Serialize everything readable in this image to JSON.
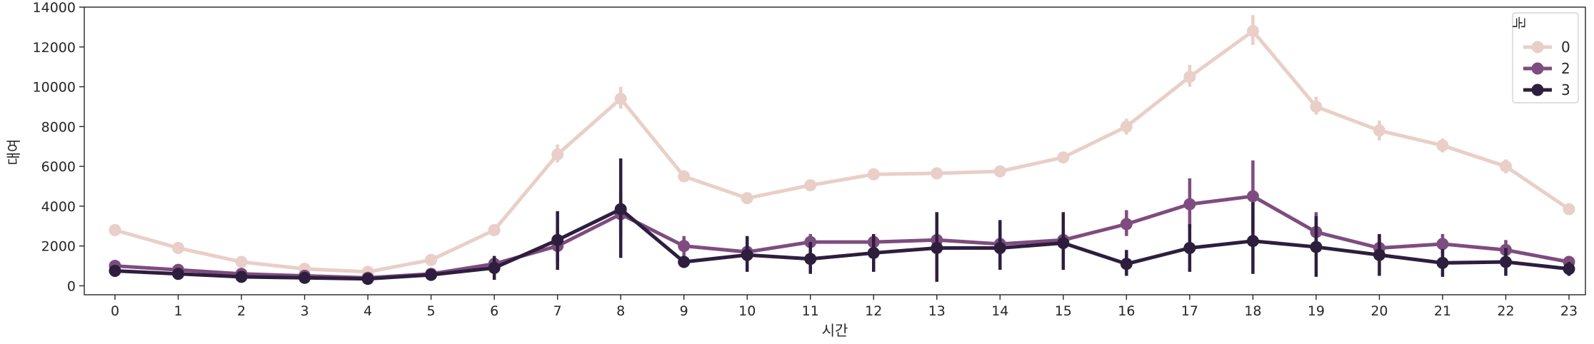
{
  "chart_data": {
    "type": "line",
    "xlabel": "시간",
    "ylabel": "대여",
    "categories": [
      "0",
      "1",
      "2",
      "3",
      "4",
      "5",
      "6",
      "7",
      "8",
      "9",
      "10",
      "11",
      "12",
      "13",
      "14",
      "15",
      "16",
      "17",
      "18",
      "19",
      "20",
      "21",
      "22",
      "23"
    ],
    "yticks": [
      0,
      2000,
      4000,
      6000,
      8000,
      10000,
      12000,
      14000
    ],
    "ylim": [
      -450,
      14000
    ],
    "legend": {
      "title": "눈",
      "placement": "top-right"
    },
    "series": [
      {
        "name": "0",
        "color": "#e9cfc7",
        "values": [
          2800,
          1900,
          1200,
          850,
          700,
          1300,
          2800,
          6600,
          9400,
          5500,
          4400,
          5050,
          5600,
          5650,
          5750,
          6450,
          8000,
          10500,
          12800,
          9000,
          7800,
          7050,
          6000,
          3850
        ],
        "error": [
          [
            2650,
            2950
          ],
          [
            1800,
            2000
          ],
          [
            1100,
            1300
          ],
          [
            750,
            950
          ],
          [
            600,
            800
          ],
          [
            1200,
            1400
          ],
          [
            2600,
            3000
          ],
          [
            6200,
            7100
          ],
          [
            8900,
            10000
          ],
          [
            5300,
            5700
          ],
          [
            4200,
            4650
          ],
          [
            4850,
            5250
          ],
          [
            5400,
            5800
          ],
          [
            5450,
            5850
          ],
          [
            5550,
            5950
          ],
          [
            6200,
            6700
          ],
          [
            7600,
            8400
          ],
          [
            10000,
            11100
          ],
          [
            12100,
            13600
          ],
          [
            8600,
            9500
          ],
          [
            7300,
            8300
          ],
          [
            6700,
            7400
          ],
          [
            5650,
            6350
          ],
          [
            3650,
            4050
          ]
        ]
      },
      {
        "name": "2",
        "color": "#7e4c7f",
        "values": [
          1000,
          800,
          600,
          500,
          400,
          600,
          1100,
          2000,
          3600,
          2000,
          1700,
          2200,
          2200,
          2300,
          2100,
          2300,
          3100,
          4100,
          4500,
          2700,
          1900,
          2100,
          1800,
          1200
        ],
        "error": [
          [
            850,
            1150
          ],
          [
            650,
            950
          ],
          [
            450,
            750
          ],
          [
            350,
            650
          ],
          [
            250,
            550
          ],
          [
            450,
            750
          ],
          [
            800,
            1400
          ],
          [
            1200,
            2900
          ],
          [
            2500,
            4700
          ],
          [
            1500,
            2500
          ],
          [
            1200,
            2200
          ],
          [
            1800,
            2600
          ],
          [
            1800,
            2600
          ],
          [
            1800,
            2800
          ],
          [
            1700,
            2600
          ],
          [
            1800,
            2800
          ],
          [
            2500,
            3800
          ],
          [
            2900,
            5400
          ],
          [
            2700,
            6300
          ],
          [
            1700,
            3700
          ],
          [
            1300,
            2600
          ],
          [
            1600,
            2600
          ],
          [
            1300,
            2300
          ],
          [
            900,
            1500
          ]
        ]
      },
      {
        "name": "3",
        "color": "#2d1e3e",
        "values": [
          750,
          600,
          450,
          400,
          350,
          550,
          900,
          2300,
          3850,
          1200,
          1550,
          1350,
          1650,
          1900,
          1900,
          2150,
          1100,
          1900,
          2250,
          1950,
          1550,
          1150,
          1200,
          850
        ],
        "error": [
          [
            550,
            950
          ],
          [
            450,
            750
          ],
          [
            300,
            600
          ],
          [
            250,
            550
          ],
          [
            200,
            500
          ],
          [
            400,
            700
          ],
          [
            300,
            1500
          ],
          [
            800,
            3750
          ],
          [
            1400,
            6400
          ],
          [
            900,
            1500
          ],
          [
            700,
            2500
          ],
          [
            600,
            2200
          ],
          [
            700,
            2600
          ],
          [
            200,
            3700
          ],
          [
            800,
            3300
          ],
          [
            800,
            3700
          ],
          [
            500,
            1800
          ],
          [
            700,
            3100
          ],
          [
            600,
            4200
          ],
          [
            450,
            3500
          ],
          [
            500,
            2600
          ],
          [
            450,
            1850
          ],
          [
            500,
            1900
          ],
          [
            500,
            1200
          ]
        ]
      }
    ]
  }
}
